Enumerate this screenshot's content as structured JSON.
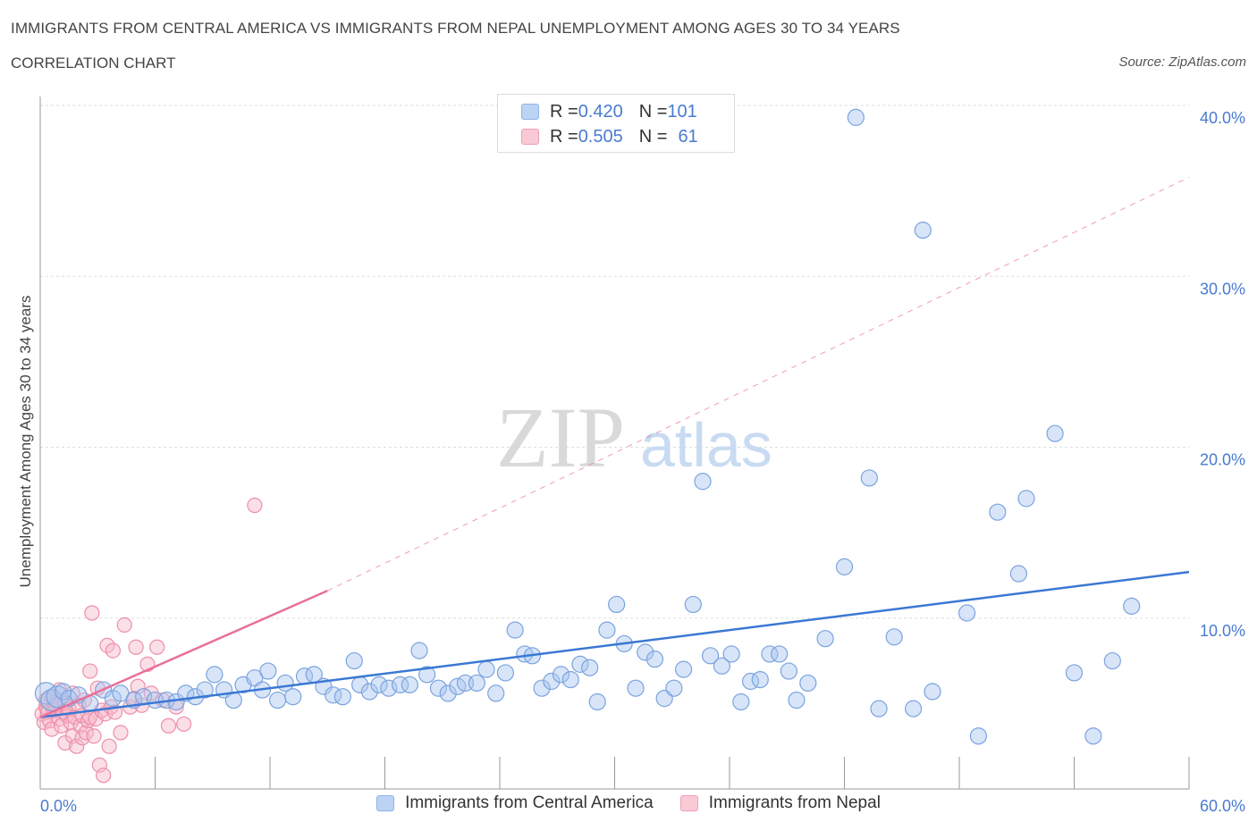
{
  "title": "IMMIGRANTS FROM CENTRAL AMERICA VS IMMIGRANTS FROM NEPAL UNEMPLOYMENT AMONG AGES 30 TO 34 YEARS",
  "subtitle": "CORRELATION CHART",
  "source": "Source: ZipAtlas.com",
  "watermark": {
    "zip": "ZIP",
    "atlas": "atlas"
  },
  "legend_top": [
    {
      "r_label": "R = ",
      "r_value": "0.420",
      "n_label": "N = ",
      "n_value": "101"
    },
    {
      "r_label": "R = ",
      "r_value": "0.505",
      "n_label": "N = ",
      "n_value": "61"
    }
  ],
  "colors": {
    "blue_fill": "#a9c6f0",
    "blue_stroke": "#7aa3df",
    "blue_line": "#3a78d4",
    "pink_fill": "#f7b8c9",
    "pink_stroke": "#ee8ea8",
    "pink_line": "#e8709a",
    "axis_text": "#4a7bd0",
    "grid": "#dddddd"
  },
  "chart_data": {
    "type": "scatter",
    "title": "IMMIGRANTS FROM CENTRAL AMERICA VS IMMIGRANTS FROM NEPAL UNEMPLOYMENT AMONG AGES 30 TO 34 YEARS",
    "xlabel": "",
    "ylabel": "Unemployment Among Ages 30 to 34 years",
    "xlim": [
      0,
      60
    ],
    "ylim": [
      0,
      40
    ],
    "x_tick_labels": [
      "0.0%",
      "60.0%"
    ],
    "y_ticks": [
      10,
      20,
      30,
      40
    ],
    "y_tick_labels": [
      "10.0%",
      "20.0%",
      "30.0%",
      "40.0%"
    ],
    "grid": true,
    "legend_position": "bottom",
    "series": [
      {
        "name": "Immigrants from Central America",
        "color": "#a9c6f0",
        "trend": {
          "x": [
            0,
            60
          ],
          "y": [
            4.2,
            12.7
          ],
          "style": "solid"
        },
        "points": [
          [
            0.3,
            5.6
          ],
          [
            0.6,
            5.2
          ],
          [
            0.9,
            5.4
          ],
          [
            1.2,
            5.7
          ],
          [
            1.5,
            5.3
          ],
          [
            2.0,
            5.5
          ],
          [
            2.6,
            5.0
          ],
          [
            3.3,
            5.8
          ],
          [
            3.8,
            5.3
          ],
          [
            4.2,
            5.6
          ],
          [
            4.9,
            5.2
          ],
          [
            5.4,
            5.4
          ],
          [
            6.0,
            5.2
          ],
          [
            6.6,
            5.2
          ],
          [
            7.1,
            5.1
          ],
          [
            7.6,
            5.6
          ],
          [
            8.1,
            5.4
          ],
          [
            8.6,
            5.8
          ],
          [
            9.1,
            6.7
          ],
          [
            9.6,
            5.8
          ],
          [
            10.1,
            5.2
          ],
          [
            10.6,
            6.1
          ],
          [
            11.2,
            6.5
          ],
          [
            11.6,
            5.8
          ],
          [
            11.9,
            6.9
          ],
          [
            12.4,
            5.2
          ],
          [
            12.8,
            6.2
          ],
          [
            13.2,
            5.4
          ],
          [
            13.8,
            6.6
          ],
          [
            14.3,
            6.7
          ],
          [
            14.8,
            6.0
          ],
          [
            15.3,
            5.5
          ],
          [
            15.8,
            5.4
          ],
          [
            16.4,
            7.5
          ],
          [
            16.7,
            6.1
          ],
          [
            17.2,
            5.7
          ],
          [
            17.7,
            6.1
          ],
          [
            18.2,
            5.9
          ],
          [
            18.8,
            6.1
          ],
          [
            19.3,
            6.1
          ],
          [
            19.8,
            8.1
          ],
          [
            20.2,
            6.7
          ],
          [
            20.8,
            5.9
          ],
          [
            21.3,
            5.6
          ],
          [
            21.8,
            6.0
          ],
          [
            22.2,
            6.2
          ],
          [
            22.8,
            6.2
          ],
          [
            23.3,
            7.0
          ],
          [
            23.8,
            5.6
          ],
          [
            24.3,
            6.8
          ],
          [
            24.8,
            9.3
          ],
          [
            25.3,
            7.9
          ],
          [
            25.7,
            7.8
          ],
          [
            26.2,
            5.9
          ],
          [
            26.7,
            6.3
          ],
          [
            27.2,
            6.7
          ],
          [
            27.7,
            6.4
          ],
          [
            28.2,
            7.3
          ],
          [
            28.7,
            7.1
          ],
          [
            29.1,
            5.1
          ],
          [
            29.6,
            9.3
          ],
          [
            30.1,
            10.8
          ],
          [
            30.5,
            8.5
          ],
          [
            31.1,
            5.9
          ],
          [
            31.6,
            8.0
          ],
          [
            32.1,
            7.6
          ],
          [
            32.6,
            5.3
          ],
          [
            33.1,
            5.9
          ],
          [
            33.6,
            7.0
          ],
          [
            34.1,
            10.8
          ],
          [
            34.6,
            18.0
          ],
          [
            35.0,
            7.8
          ],
          [
            35.6,
            7.2
          ],
          [
            36.1,
            7.9
          ],
          [
            36.6,
            5.1
          ],
          [
            37.1,
            6.3
          ],
          [
            37.6,
            6.4
          ],
          [
            38.1,
            7.9
          ],
          [
            38.6,
            7.9
          ],
          [
            39.1,
            6.9
          ],
          [
            39.5,
            5.2
          ],
          [
            40.1,
            6.2
          ],
          [
            41.0,
            8.8
          ],
          [
            42.0,
            13.0
          ],
          [
            42.6,
            39.3
          ],
          [
            43.3,
            18.2
          ],
          [
            43.8,
            4.7
          ],
          [
            44.6,
            8.9
          ],
          [
            45.6,
            4.7
          ],
          [
            46.1,
            32.7
          ],
          [
            46.6,
            5.7
          ],
          [
            48.4,
            10.3
          ],
          [
            49.0,
            3.1
          ],
          [
            50.0,
            16.2
          ],
          [
            51.1,
            12.6
          ],
          [
            51.5,
            17.0
          ],
          [
            53.0,
            20.8
          ],
          [
            54.0,
            6.8
          ],
          [
            55.0,
            3.1
          ],
          [
            56.0,
            7.5
          ],
          [
            57.0,
            10.7
          ]
        ]
      },
      {
        "name": "Immigrants from Nepal",
        "color": "#f7b8c9",
        "trend": {
          "x": [
            0,
            15
          ],
          "y": [
            4.2,
            11.6
          ],
          "dashed_extension": {
            "x": [
              15,
              60
            ],
            "y": [
              11.6,
              35.8
            ]
          },
          "style": "solid"
        },
        "points": [
          [
            0.1,
            4.4
          ],
          [
            0.2,
            3.9
          ],
          [
            0.3,
            4.8
          ],
          [
            0.3,
            5.2
          ],
          [
            0.4,
            4.5
          ],
          [
            0.5,
            4.0
          ],
          [
            0.6,
            5.4
          ],
          [
            0.6,
            3.5
          ],
          [
            0.7,
            4.6
          ],
          [
            0.8,
            4.9
          ],
          [
            0.9,
            5.1
          ],
          [
            1.0,
            4.1
          ],
          [
            1.0,
            5.8
          ],
          [
            1.1,
            3.7
          ],
          [
            1.2,
            4.5
          ],
          [
            1.3,
            2.7
          ],
          [
            1.3,
            5.0
          ],
          [
            1.4,
            4.3
          ],
          [
            1.5,
            4.7
          ],
          [
            1.6,
            3.9
          ],
          [
            1.7,
            5.6
          ],
          [
            1.7,
            3.1
          ],
          [
            1.8,
            4.2
          ],
          [
            1.9,
            2.5
          ],
          [
            2.0,
            4.9
          ],
          [
            2.1,
            3.7
          ],
          [
            2.2,
            4.3
          ],
          [
            2.2,
            3.0
          ],
          [
            2.3,
            5.2
          ],
          [
            2.4,
            3.3
          ],
          [
            2.5,
            4.0
          ],
          [
            2.6,
            6.9
          ],
          [
            2.6,
            4.2
          ],
          [
            2.7,
            10.3
          ],
          [
            2.8,
            3.1
          ],
          [
            2.9,
            4.1
          ],
          [
            3.0,
            5.9
          ],
          [
            3.1,
            1.4
          ],
          [
            3.2,
            4.6
          ],
          [
            3.3,
            0.8
          ],
          [
            3.4,
            4.4
          ],
          [
            3.5,
            8.4
          ],
          [
            3.6,
            2.5
          ],
          [
            3.7,
            4.8
          ],
          [
            3.8,
            8.1
          ],
          [
            3.9,
            4.5
          ],
          [
            4.2,
            3.3
          ],
          [
            4.4,
            9.6
          ],
          [
            4.7,
            4.8
          ],
          [
            4.9,
            5.3
          ],
          [
            5.0,
            8.3
          ],
          [
            5.1,
            6.0
          ],
          [
            5.3,
            4.9
          ],
          [
            5.6,
            7.3
          ],
          [
            5.8,
            5.6
          ],
          [
            6.1,
            8.3
          ],
          [
            6.4,
            5.2
          ],
          [
            6.7,
            3.7
          ],
          [
            7.1,
            4.8
          ],
          [
            7.5,
            3.8
          ],
          [
            11.2,
            16.6
          ]
        ]
      }
    ]
  },
  "bottom_legend": [
    {
      "label": "Immigrants from Central America"
    },
    {
      "label": "Immigrants from Nepal"
    }
  ]
}
